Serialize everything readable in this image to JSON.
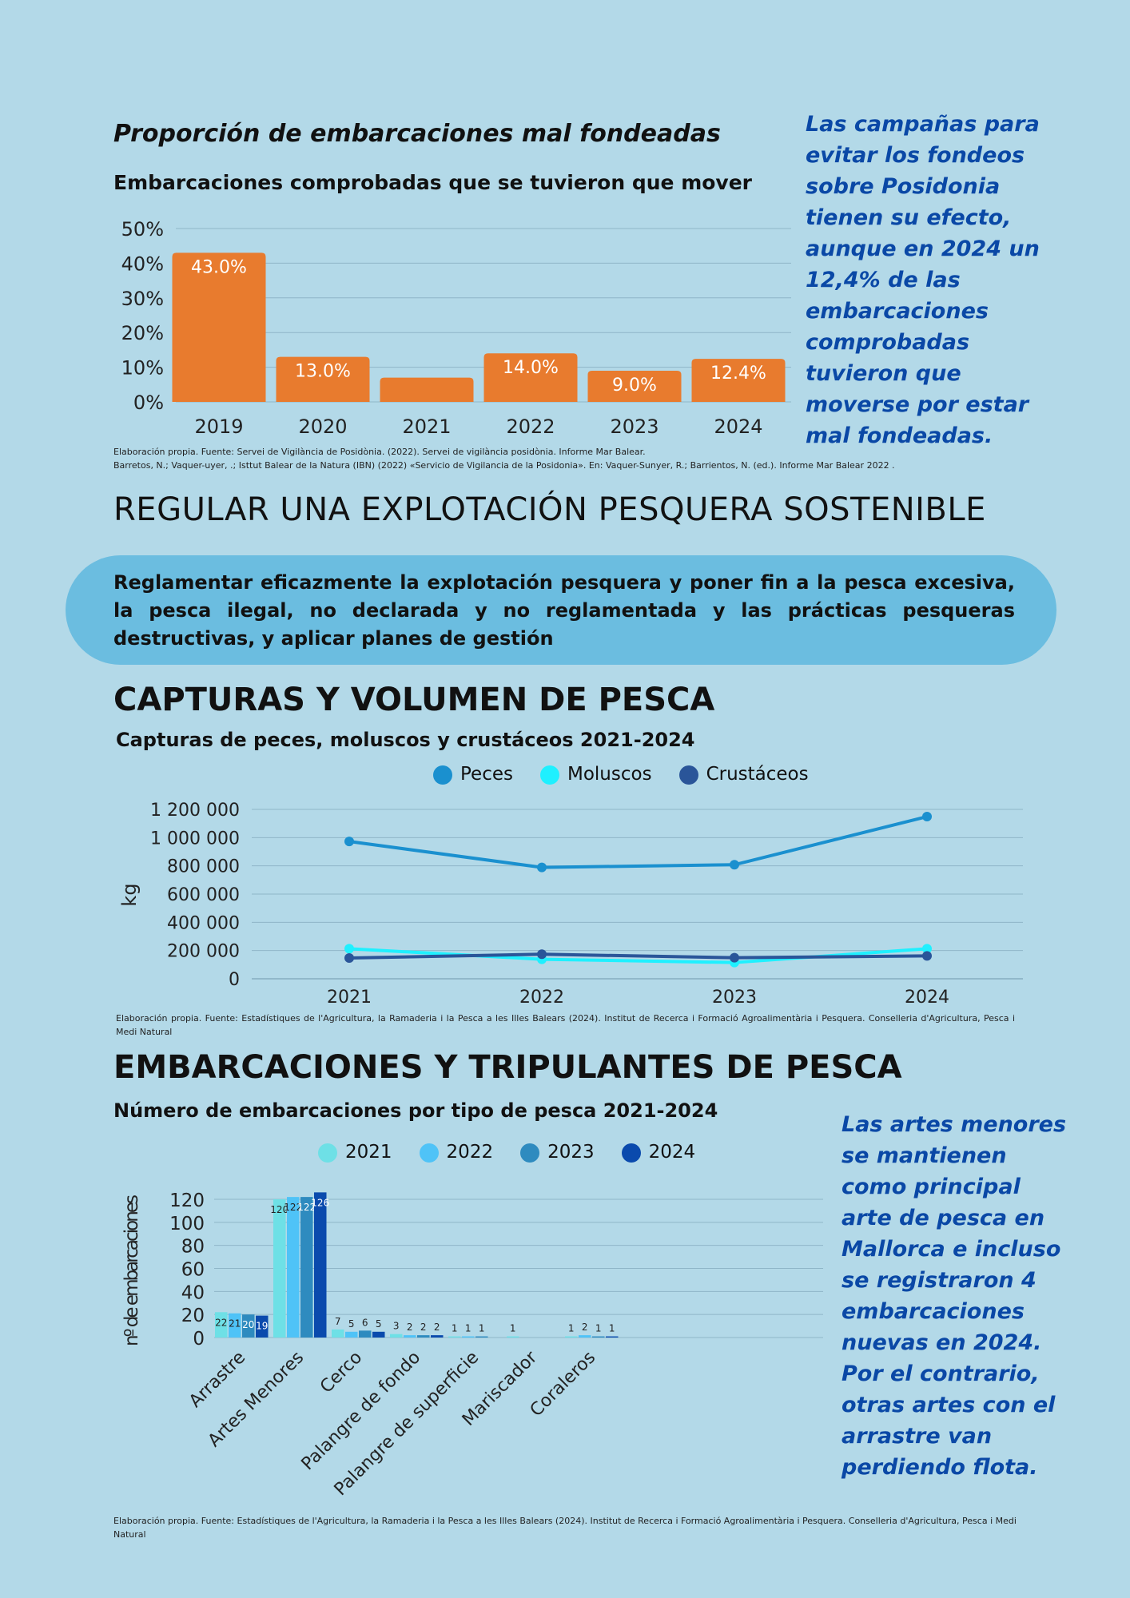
{
  "section1": {
    "title": "Proporción de embarcaciones mal fondeadas",
    "subtitle": "Embarcaciones comprobadas que se tuvieron que mover",
    "side_text": "Las campañas para evitar los fondeos sobre Posidonia tienen su efecto, aunque en 2024 un 12,4% de las embarcaciones comprobadas tuvieron que moverse por estar mal fondeadas.",
    "source_line1": "Elaboración propia. Fuente: Servei de Vigilància de Posidònia. (2022). Servei de vigilància posidònia. Informe Mar Balear.",
    "source_line2": "Barretos, N.; Vaquer-uyer, .; Isttut Balear de la Natura (IBN) (2022) «Servicio de Vigilancia de la Posidonia». En: Vaquer-Sunyer, R.; Barrientos, N. (ed.). Informe Mar Balear 2022 ."
  },
  "section2": {
    "heading": "REGULAR UNA EXPLOTACIÓN PESQUERA SOSTENIBLE",
    "goal_text": "Reglamentar eficazmente la explotación pesquera y poner fin a la pesca excesiva, la pesca ilegal, no declarada y no reglamentada y las prácticas pesqueras destructivas, y aplicar planes de gestión"
  },
  "section3": {
    "heading": "CAPTURAS Y VOLUMEN DE PESCA",
    "subtitle": "Capturas de peces, moluscos y crustáceos 2021-2024",
    "source": "Elaboración propia. Fuente: Estadístiques de l'Agricultura, la Ramaderia i la Pesca a les Illes Balears (2024). Institut de Recerca i Formació Agroalimentària i Pesquera. Conselleria d'Agricultura, Pesca i Medi Natural"
  },
  "section4": {
    "heading": "EMBARCACIONES Y TRIPULANTES DE PESCA",
    "subtitle": "Número de embarcaciones por tipo de pesca 2021-2024",
    "side_text": "Las artes menores se mantienen como principal arte de pesca en Mallorca e incluso se registraron 4 embarcaciones nuevas en 2024. Por el contrario, otras artes con el arrastre van perdiendo flota.",
    "source": "Elaboración propia. Fuente: Estadístiques de l'Agricultura, la Ramaderia i la Pesca a les Illes Balears (2024). Institut de Recerca i Formació Agroalimentària i Pesquera. Conselleria d'Agricultura, Pesca i Medi Natural"
  },
  "chart_data": [
    {
      "type": "bar",
      "title": "Embarcaciones comprobadas que se tuvieron que mover",
      "categories": [
        "2019",
        "2020",
        "2021",
        "2022",
        "2023",
        "2024"
      ],
      "values": [
        43.0,
        13.0,
        7.0,
        14.0,
        9.0,
        12.4
      ],
      "data_labels": [
        "43.0%",
        "13.0%",
        "",
        "14.0%",
        "9.0%",
        "12.4%"
      ],
      "yticks": [
        "0%",
        "10%",
        "20%",
        "30%",
        "40%",
        "50%"
      ],
      "ylim": [
        0,
        50
      ],
      "color": "#e87b2e",
      "grid": true
    },
    {
      "type": "line",
      "title": "Capturas de peces, moluscos y crustáceos 2021-2024",
      "ylabel": "kg",
      "categories": [
        "2021",
        "2022",
        "2023",
        "2024"
      ],
      "ylim": [
        0,
        1200000
      ],
      "yticks": [
        "0",
        "200 000",
        "400 000",
        "600 000",
        "800 000",
        "1 000 000",
        "1 200 000"
      ],
      "legend": "top",
      "grid": true,
      "series": [
        {
          "name": "Peces",
          "color": "#1a90cf",
          "values": [
            973000,
            789000,
            808000,
            1149000
          ]
        },
        {
          "name": "Moluscos",
          "color": "#1ff0ff",
          "values": [
            213000,
            138000,
            115000,
            213000
          ]
        },
        {
          "name": "Crustáceos",
          "color": "#2a5599",
          "values": [
            147000,
            174000,
            149000,
            162000
          ]
        }
      ]
    },
    {
      "type": "bar",
      "title": "Número de embarcaciones por tipo de pesca 2021-2024",
      "ylabel": "nº de embarcaciones",
      "categories": [
        "Arrastre",
        "Artes Menores",
        "Cerco",
        "Palangre de fondo",
        "Palangre de superficie",
        "Mariscador",
        "Coraleros"
      ],
      "ylim": [
        0,
        120
      ],
      "yticks": [
        "0",
        "20",
        "40",
        "60",
        "80",
        "100",
        "120"
      ],
      "legend": "top",
      "grid": true,
      "series": [
        {
          "name": "2021",
          "color": "#6ee0e6",
          "values": [
            22,
            120,
            7,
            3,
            1,
            1,
            1
          ]
        },
        {
          "name": "2022",
          "color": "#4fc3f7",
          "values": [
            21,
            122,
            5,
            2,
            1,
            null,
            2
          ]
        },
        {
          "name": "2023",
          "color": "#2e8bbf",
          "values": [
            20,
            122,
            6,
            2,
            1,
            null,
            1
          ]
        },
        {
          "name": "2024",
          "color": "#0a4aad",
          "values": [
            19,
            126,
            5,
            2,
            null,
            null,
            1
          ]
        }
      ]
    }
  ]
}
